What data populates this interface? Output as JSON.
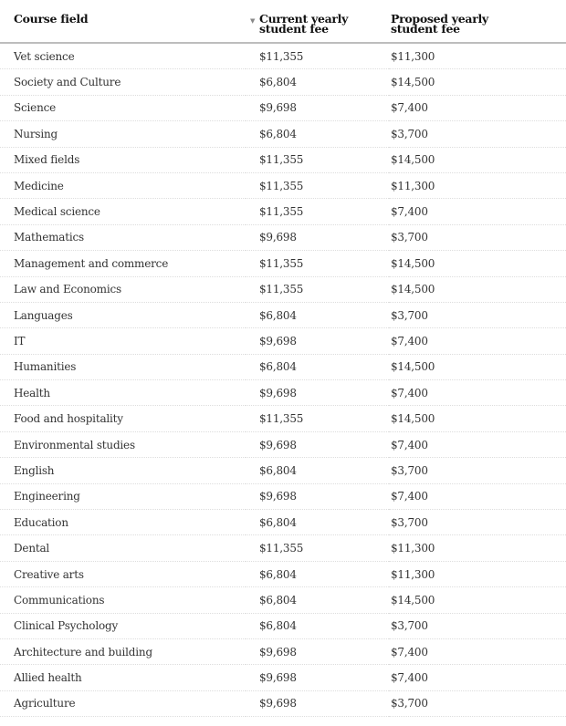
{
  "table": {
    "headers": [
      "Course field",
      "Current yearly student fee",
      "Proposed yearly student fee"
    ],
    "sort_icon": "sort-desc-icon",
    "rows": [
      [
        "Vet science",
        "$11,355",
        "$11,300"
      ],
      [
        "Society and Culture",
        "$6,804",
        "$14,500"
      ],
      [
        "Science",
        "$9,698",
        "$7,400"
      ],
      [
        "Nursing",
        "$6,804",
        "$3,700"
      ],
      [
        "Mixed fields",
        "$11,355",
        "$14,500"
      ],
      [
        "Medicine",
        "$11,355",
        "$11,300"
      ],
      [
        "Medical science",
        "$11,355",
        "$7,400"
      ],
      [
        "Mathematics",
        "$9,698",
        "$3,700"
      ],
      [
        "Management and commerce",
        "$11,355",
        "$14,500"
      ],
      [
        "Law and Economics",
        "$11,355",
        "$14,500"
      ],
      [
        "Languages",
        "$6,804",
        "$3,700"
      ],
      [
        "IT",
        "$9,698",
        "$7,400"
      ],
      [
        "Humanities",
        "$6,804",
        "$14,500"
      ],
      [
        "Health",
        "$9,698",
        "$7,400"
      ],
      [
        "Food and hospitality",
        "$11,355",
        "$14,500"
      ],
      [
        "Environmental studies",
        "$9,698",
        "$7,400"
      ],
      [
        "English",
        "$6,804",
        "$3,700"
      ],
      [
        "Engineering",
        "$9,698",
        "$7,400"
      ],
      [
        "Education",
        "$6,804",
        "$3,700"
      ],
      [
        "Dental",
        "$11,355",
        "$11,300"
      ],
      [
        "Creative arts",
        "$6,804",
        "$11,300"
      ],
      [
        "Communications",
        "$6,804",
        "$14,500"
      ],
      [
        "Clinical Psychology",
        "$6,804",
        "$3,700"
      ],
      [
        "Architecture and building",
        "$9,698",
        "$7,400"
      ],
      [
        "Allied health",
        "$9,698",
        "$7,400"
      ],
      [
        "Agriculture",
        "$9,698",
        "$3,700"
      ]
    ]
  }
}
